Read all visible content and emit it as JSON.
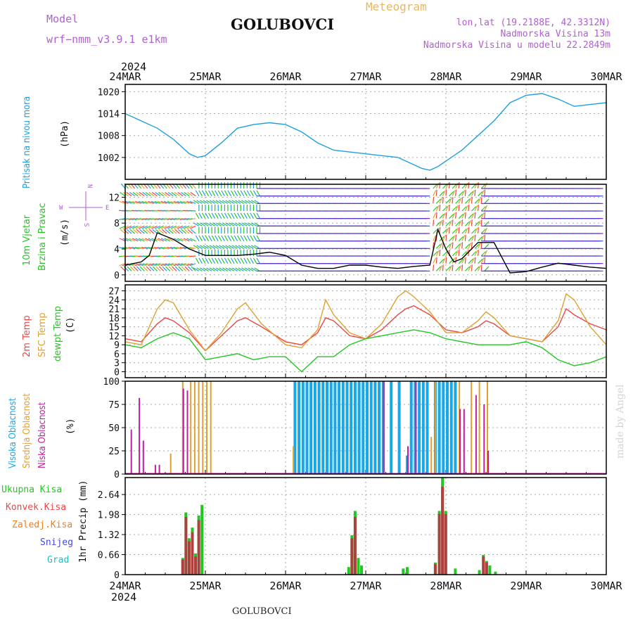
{
  "header": {
    "title": "GOLUBOVCI",
    "model_label": "Model",
    "model_name": "wrf−nmm_v3.9.1  e1km",
    "product": "Meteogram",
    "location_line": "lon,lat (19.2188E, 42.3312N)",
    "altitude_line": "Nadmorska Visina 13m",
    "model_altitude_line": "Nadmorska Visina u modelu 22.2849m",
    "footer_title": "GOLUBOVCI",
    "credit": "made by Angel"
  },
  "colors": {
    "pressure": "#1ea0e0",
    "temp2m": "#e84848",
    "sfc": "#e0a030",
    "dewpt": "#22c822",
    "high": "#18a8e8",
    "mid": "#e0a030",
    "low": "#c020a0",
    "precip": "#22c822",
    "conv": "#b04040",
    "frozen": "#f08020",
    "snow": "#4848e0",
    "hail": "#20c0c0"
  },
  "time_axis": {
    "year": "2024",
    "ticks": [
      "24MAR",
      "25MAR",
      "26MAR",
      "27MAR",
      "28MAR",
      "29MAR",
      "30MAR"
    ]
  },
  "panels": {
    "pressure": {
      "label": "Pritisak na nivou mora",
      "unit": "(hPa)"
    },
    "wind": {
      "label_line1": "10m Vjetar",
      "label_line2": "Brzina i Pravac",
      "unit": "(m/s)",
      "compass_n": "N",
      "compass_e": "E",
      "compass_w": "W",
      "compass_s": "S"
    },
    "temp": {
      "label_2m": "2m Temp",
      "label_sfc": "SFC Temp",
      "label_dew": "dewpt Temp",
      "unit": "(C)"
    },
    "cloud": {
      "label_high": "Visoka Oblacnost",
      "label_mid": "Srednja Oblacnost",
      "label_low": "Niska Oblacnost",
      "unit": "(%)"
    },
    "precip": {
      "label_total": "Ukupna Kisa",
      "label_conv": "Konvek.Kisa",
      "label_frozen": "Zaledj.Kisa",
      "label_snow": "Snijeg",
      "label_hail": "Grad",
      "unit": "1hr Precip (mm)"
    }
  },
  "chart_data": [
    {
      "type": "line",
      "title": "Pritisak na nivou mora",
      "ylabel": "(hPa)",
      "ylim": [
        996,
        1022
      ],
      "yticks": [
        1002,
        1008,
        1014,
        1020
      ],
      "series": [
        {
          "name": "Pritisak na nivou mora",
          "x_days": [
            0,
            0.2,
            0.4,
            0.6,
            0.8,
            0.9,
            1.0,
            1.2,
            1.4,
            1.6,
            1.8,
            2.0,
            2.2,
            2.4,
            2.6,
            2.8,
            3.0,
            3.2,
            3.4,
            3.6,
            3.7,
            3.8,
            3.9,
            4.0,
            4.2,
            4.4,
            4.6,
            4.8,
            5.0,
            5.2,
            5.4,
            5.6,
            5.8,
            6.0
          ],
          "values": [
            1014,
            1012,
            1010,
            1007,
            1003,
            1002,
            1002.5,
            1006,
            1010,
            1011,
            1011.5,
            1011,
            1009,
            1006,
            1004,
            1003.5,
            1003,
            1002.5,
            1002,
            1000,
            999,
            998.5,
            999.5,
            1001,
            1004,
            1008,
            1012,
            1017,
            1019,
            1019.5,
            1018,
            1016,
            1016.5,
            1017
          ]
        }
      ]
    },
    {
      "type": "line",
      "title": "10m Vjetar Brzina i Pravac",
      "ylabel": "(m/s)",
      "ylim": [
        -1,
        14
      ],
      "yticks": [
        0,
        4,
        8,
        12
      ],
      "series": [
        {
          "name": "10m Vjetar",
          "x_days": [
            0,
            0.2,
            0.3,
            0.4,
            0.6,
            0.8,
            1.0,
            1.2,
            1.4,
            1.6,
            1.8,
            2.0,
            2.2,
            2.4,
            2.6,
            2.8,
            3.0,
            3.2,
            3.4,
            3.6,
            3.8,
            3.9,
            4.0,
            4.1,
            4.2,
            4.4,
            4.6,
            4.8,
            5.0,
            5.2,
            5.4,
            5.6,
            5.8,
            6.0
          ],
          "values": [
            1.5,
            2,
            3,
            6.5,
            5.5,
            4,
            3,
            3,
            3,
            3.2,
            3.5,
            3,
            1.5,
            1,
            1,
            1.5,
            1.5,
            1.2,
            1,
            1.3,
            1.5,
            7,
            4,
            2,
            2.5,
            5,
            5,
            0.3,
            0.5,
            1.2,
            1.8,
            1.5,
            1.2,
            1
          ]
        }
      ]
    },
    {
      "type": "line",
      "title": "",
      "ylabel": "(C)",
      "ylim": [
        -2,
        29
      ],
      "yticks": [
        0,
        3,
        6,
        9,
        12,
        15,
        18,
        21,
        24,
        27
      ],
      "series": [
        {
          "name": "2m Temp",
          "x_days": [
            0,
            0.2,
            0.4,
            0.5,
            0.6,
            0.8,
            1.0,
            1.2,
            1.4,
            1.5,
            1.7,
            2.0,
            2.2,
            2.4,
            2.5,
            2.6,
            2.8,
            3.0,
            3.2,
            3.4,
            3.5,
            3.6,
            3.8,
            4.0,
            4.2,
            4.4,
            4.5,
            4.6,
            4.8,
            5.0,
            5.2,
            5.4,
            5.5,
            5.6,
            5.8,
            6.0
          ],
          "values": [
            11,
            10,
            16,
            18,
            17,
            13,
            7,
            12,
            17,
            18,
            15,
            10,
            9,
            13,
            18,
            17,
            12,
            11,
            14,
            19,
            21,
            22,
            19,
            14,
            13,
            15,
            17,
            16,
            12,
            11,
            10,
            15,
            21,
            19,
            16,
            14
          ]
        },
        {
          "name": "SFC Temp",
          "x_days": [
            0,
            0.2,
            0.4,
            0.5,
            0.6,
            0.8,
            1.0,
            1.2,
            1.4,
            1.5,
            1.7,
            2.0,
            2.2,
            2.4,
            2.5,
            2.6,
            2.8,
            3.0,
            3.2,
            3.4,
            3.5,
            3.6,
            3.8,
            4.0,
            4.2,
            4.4,
            4.5,
            4.6,
            4.8,
            5.0,
            5.2,
            5.4,
            5.5,
            5.6,
            5.8,
            6.0
          ],
          "values": [
            10,
            9,
            21,
            24,
            23,
            14,
            7,
            13,
            21,
            23,
            16,
            9,
            8,
            14,
            24,
            19,
            13,
            11,
            16,
            25,
            27,
            25,
            20,
            13,
            13,
            17,
            20,
            18,
            12,
            11,
            10,
            17,
            26,
            24,
            15,
            9
          ]
        },
        {
          "name": "dewpt Temp",
          "x_days": [
            0,
            0.2,
            0.4,
            0.6,
            0.8,
            1.0,
            1.2,
            1.4,
            1.6,
            1.8,
            2.0,
            2.2,
            2.4,
            2.6,
            2.8,
            3.0,
            3.2,
            3.4,
            3.6,
            3.8,
            4.0,
            4.2,
            4.4,
            4.6,
            4.8,
            5.0,
            5.2,
            5.4,
            5.6,
            5.8,
            6.0
          ],
          "values": [
            9,
            8,
            11,
            13,
            11,
            4,
            5,
            6,
            4,
            5,
            5,
            0,
            5,
            5,
            9,
            11,
            12,
            13,
            14,
            13,
            11,
            10,
            9,
            9,
            9,
            10,
            8,
            4,
            2,
            3,
            5
          ]
        }
      ]
    },
    {
      "type": "bar",
      "title": "",
      "ylabel": "(%)",
      "ylim": [
        0,
        100
      ],
      "yticks": [
        0,
        25,
        50,
        75,
        100
      ],
      "series": [
        {
          "name": "Visoka Oblacnost",
          "x_days": [
            2.1,
            2.15,
            2.2,
            2.25,
            2.3,
            2.35,
            2.4,
            2.45,
            2.5,
            2.55,
            2.6,
            2.65,
            2.7,
            2.75,
            2.8,
            2.85,
            2.9,
            2.95,
            3.0,
            3.05,
            3.1,
            3.15,
            3.2,
            3.3,
            3.4,
            3.5,
            3.55,
            3.6,
            3.65,
            3.7,
            3.75,
            3.85,
            3.9,
            3.95,
            4.0,
            4.05,
            4.1
          ],
          "values": [
            100,
            100,
            100,
            100,
            100,
            100,
            100,
            100,
            100,
            100,
            100,
            100,
            100,
            100,
            100,
            100,
            100,
            100,
            100,
            100,
            100,
            100,
            100,
            100,
            100,
            20,
            100,
            100,
            100,
            100,
            100,
            100,
            100,
            100,
            100,
            100,
            100
          ]
        },
        {
          "name": "Srednja Oblacnost",
          "x_days": [
            0.55,
            0.7,
            0.8,
            0.85,
            0.9,
            0.95,
            1.0,
            1.05,
            2.08,
            3.8,
            3.85,
            4.15,
            4.3,
            4.4,
            4.5
          ],
          "values": [
            22,
            100,
            100,
            100,
            100,
            100,
            100,
            100,
            30,
            40,
            100,
            100,
            100,
            100,
            100
          ]
        },
        {
          "name": "Niska Oblacnost",
          "x_days": [
            0.05,
            0.15,
            0.2,
            0.35,
            0.4,
            0.7,
            0.75,
            3.2,
            3.5,
            3.6,
            4.15,
            4.2,
            4.35,
            4.45,
            4.5
          ],
          "values": [
            48,
            82,
            36,
            10,
            10,
            92,
            90,
            100,
            30,
            100,
            70,
            70,
            85,
            75,
            25
          ]
        }
      ]
    },
    {
      "type": "bar",
      "title": "",
      "ylabel": "1hr Precip (mm)",
      "ylim": [
        0,
        3.2
      ],
      "yticks": [
        0,
        0.66,
        1.32,
        1.98,
        2.64
      ],
      "series": [
        {
          "name": "Ukupna Kisa",
          "x_days": [
            0.7,
            0.74,
            0.78,
            0.82,
            0.86,
            0.9,
            0.94,
            2.77,
            2.81,
            2.85,
            2.89,
            2.93,
            3.45,
            3.5,
            3.85,
            3.9,
            3.94,
            3.98,
            4.1,
            4.4,
            4.45,
            4.49,
            4.53,
            4.6
          ],
          "values": [
            0.55,
            2.05,
            1.2,
            1.55,
            0.7,
            1.95,
            2.3,
            0.25,
            1.3,
            2.1,
            0.55,
            0.3,
            0.2,
            0.25,
            0.4,
            2.1,
            3.2,
            2.1,
            0.2,
            0.15,
            0.65,
            0.45,
            0.3,
            0.1
          ]
        },
        {
          "name": "Konvek.Kisa",
          "x_days": [
            0.7,
            0.74,
            0.78,
            0.82,
            0.86,
            0.9,
            2.81,
            2.85,
            3.85,
            3.9,
            3.94,
            3.98,
            4.45,
            4.49
          ],
          "values": [
            0.5,
            1.9,
            1.1,
            1.4,
            0.6,
            1.8,
            1.2,
            1.9,
            0.35,
            2.0,
            2.9,
            2.0,
            0.6,
            0.4
          ]
        }
      ]
    }
  ]
}
